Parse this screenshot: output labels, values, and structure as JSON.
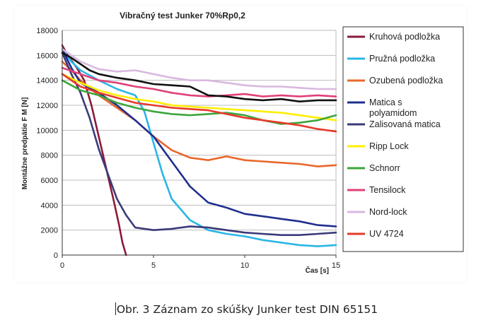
{
  "caption": "Obr. 3 Záznam zo skúšky Junker test DIN 65151",
  "chart_data": {
    "type": "line",
    "title": "Vibračný test Junker 70%Rp0,2",
    "xlabel": "Čas [s]",
    "ylabel": "Montážne predpätie F M [N]",
    "xlim": [
      0,
      15
    ],
    "ylim": [
      0,
      18000
    ],
    "x_ticks": [
      "0",
      "5",
      "10",
      "15"
    ],
    "y_ticks": [
      "0",
      "2000",
      "4000",
      "6000",
      "8000",
      "10000",
      "12000",
      "14000",
      "16000",
      "18000"
    ],
    "grid": "horizontal",
    "legend_position": "right",
    "series": [
      {
        "name": "Kruhová podložka",
        "color": "#8b1a3a",
        "x": [
          0,
          0.3,
          0.8,
          1.2,
          1.6,
          2.0,
          2.4,
          2.8,
          3.1,
          3.3,
          3.5
        ],
        "y": [
          16800,
          16000,
          15000,
          14000,
          12000,
          9500,
          7000,
          4500,
          2500,
          1000,
          0
        ]
      },
      {
        "name": "Pružná podložka",
        "color": "#29b6e6",
        "x": [
          0,
          0.5,
          1.0,
          2.0,
          3.0,
          4.0,
          4.5,
          5.0,
          5.5,
          6.0,
          7.0,
          8.0,
          9.0,
          10.0,
          11.0,
          12.0,
          13.0,
          14.0,
          15.0
        ],
        "y": [
          16500,
          15500,
          14800,
          14000,
          13300,
          12800,
          11500,
          9000,
          6500,
          4500,
          2800,
          2000,
          1700,
          1500,
          1200,
          1000,
          800,
          700,
          800
        ]
      },
      {
        "name": "Ozubená podložka",
        "color": "#e8672b",
        "x": [
          0,
          0.5,
          1.0,
          2.0,
          3.0,
          4.0,
          5.0,
          6.0,
          7.0,
          8.0,
          9.0,
          10.0,
          11.0,
          12.0,
          13.0,
          14.0,
          15.0
        ],
        "y": [
          15500,
          14800,
          14000,
          12800,
          11800,
          10800,
          9500,
          8400,
          7800,
          7600,
          7900,
          7600,
          7500,
          7400,
          7300,
          7100,
          7200
        ]
      },
      {
        "name": "Matica s polyamidom",
        "color": "#1f2f8f",
        "x": [
          0,
          0.5,
          1.0,
          2.0,
          3.0,
          4.0,
          5.0,
          6.0,
          7.0,
          8.0,
          9.0,
          10.0,
          11.0,
          12.0,
          13.0,
          14.0,
          15.0
        ],
        "y": [
          16500,
          15000,
          13800,
          13000,
          12000,
          10800,
          9500,
          7500,
          5500,
          4200,
          3800,
          3300,
          3100,
          2900,
          2700,
          2400,
          2300
        ]
      },
      {
        "name": "Zalisovaná matica",
        "color": "#3a3a7a",
        "x": [
          0,
          0.5,
          1.0,
          1.5,
          2.0,
          2.5,
          3.0,
          3.5,
          4.0,
          5.0,
          6.0,
          7.0,
          8.0,
          9.0,
          10.0,
          11.0,
          12.0,
          13.0,
          14.0,
          15.0
        ],
        "y": [
          16200,
          14500,
          13000,
          11000,
          8500,
          6500,
          4500,
          3200,
          2200,
          2000,
          2100,
          2300,
          2200,
          2000,
          1800,
          1700,
          1600,
          1600,
          1700,
          1800
        ]
      },
      {
        "name": "Ripp Lock",
        "color": "#ffee00",
        "x": [
          0,
          1.0,
          2.0,
          3.0,
          4.0,
          5.0,
          6.0,
          7.0,
          8.0,
          9.0,
          10.0,
          11.0,
          12.0,
          13.0,
          14.0,
          15.0
        ],
        "y": [
          14500,
          13800,
          13200,
          12800,
          12500,
          12300,
          12000,
          11900,
          11800,
          11700,
          11600,
          11500,
          11400,
          11200,
          11000,
          10800
        ]
      },
      {
        "name": "Schnorr",
        "color": "#3da53d",
        "x": [
          0,
          1.0,
          2.0,
          3.0,
          4.0,
          5.0,
          6.0,
          7.0,
          8.0,
          9.0,
          10.0,
          11.0,
          12.0,
          13.0,
          14.0,
          15.0
        ],
        "y": [
          14000,
          13200,
          12800,
          12200,
          11800,
          11500,
          11300,
          11200,
          11300,
          11400,
          11200,
          10800,
          10500,
          10600,
          10800,
          11200
        ]
      },
      {
        "name": "Tensilock",
        "color": "#e0407a",
        "x": [
          0,
          1.0,
          2.0,
          3.0,
          4.0,
          5.0,
          6.0,
          7.0,
          8.0,
          9.0,
          10.0,
          11.0,
          12.0,
          13.0,
          14.0,
          15.0
        ],
        "y": [
          15000,
          14500,
          14000,
          13800,
          13500,
          13300,
          13000,
          12800,
          12700,
          12800,
          12900,
          12700,
          12800,
          12700,
          12800,
          12700
        ]
      },
      {
        "name": "Nord-lock",
        "color": "#d9b8e0",
        "x": [
          0,
          1.0,
          2.0,
          3.0,
          4.0,
          5.0,
          6.0,
          7.0,
          8.0,
          9.0,
          10.0,
          11.0,
          12.0,
          13.0,
          14.0,
          15.0
        ],
        "y": [
          16500,
          15500,
          14900,
          14700,
          14800,
          14500,
          14200,
          14000,
          14000,
          13800,
          13600,
          13500,
          13500,
          13400,
          13300,
          13300
        ]
      },
      {
        "name": "UV 4724",
        "color": "#e63a2a",
        "x": [
          0,
          1.0,
          2.0,
          3.0,
          4.0,
          5.0,
          6.0,
          7.0,
          8.0,
          9.0,
          10.0,
          11.0,
          12.0,
          13.0,
          14.0,
          15.0
        ],
        "y": [
          14500,
          13500,
          13000,
          12600,
          12200,
          12000,
          11800,
          11700,
          11600,
          11300,
          11000,
          10800,
          10600,
          10400,
          10100,
          9900
        ]
      },
      {
        "name": "",
        "color": "#111111",
        "x": [
          0,
          0.5,
          1.0,
          1.5,
          2.0,
          3.0,
          4.0,
          5.0,
          6.0,
          7.0,
          8.0,
          9.0,
          10.0,
          11.0,
          12.0,
          13.0,
          14.0,
          15.0
        ],
        "y": [
          16200,
          15800,
          15300,
          14800,
          14500,
          14200,
          14000,
          13700,
          13600,
          13500,
          12800,
          12700,
          12500,
          12400,
          12500,
          12300,
          12400,
          12400
        ]
      }
    ]
  }
}
